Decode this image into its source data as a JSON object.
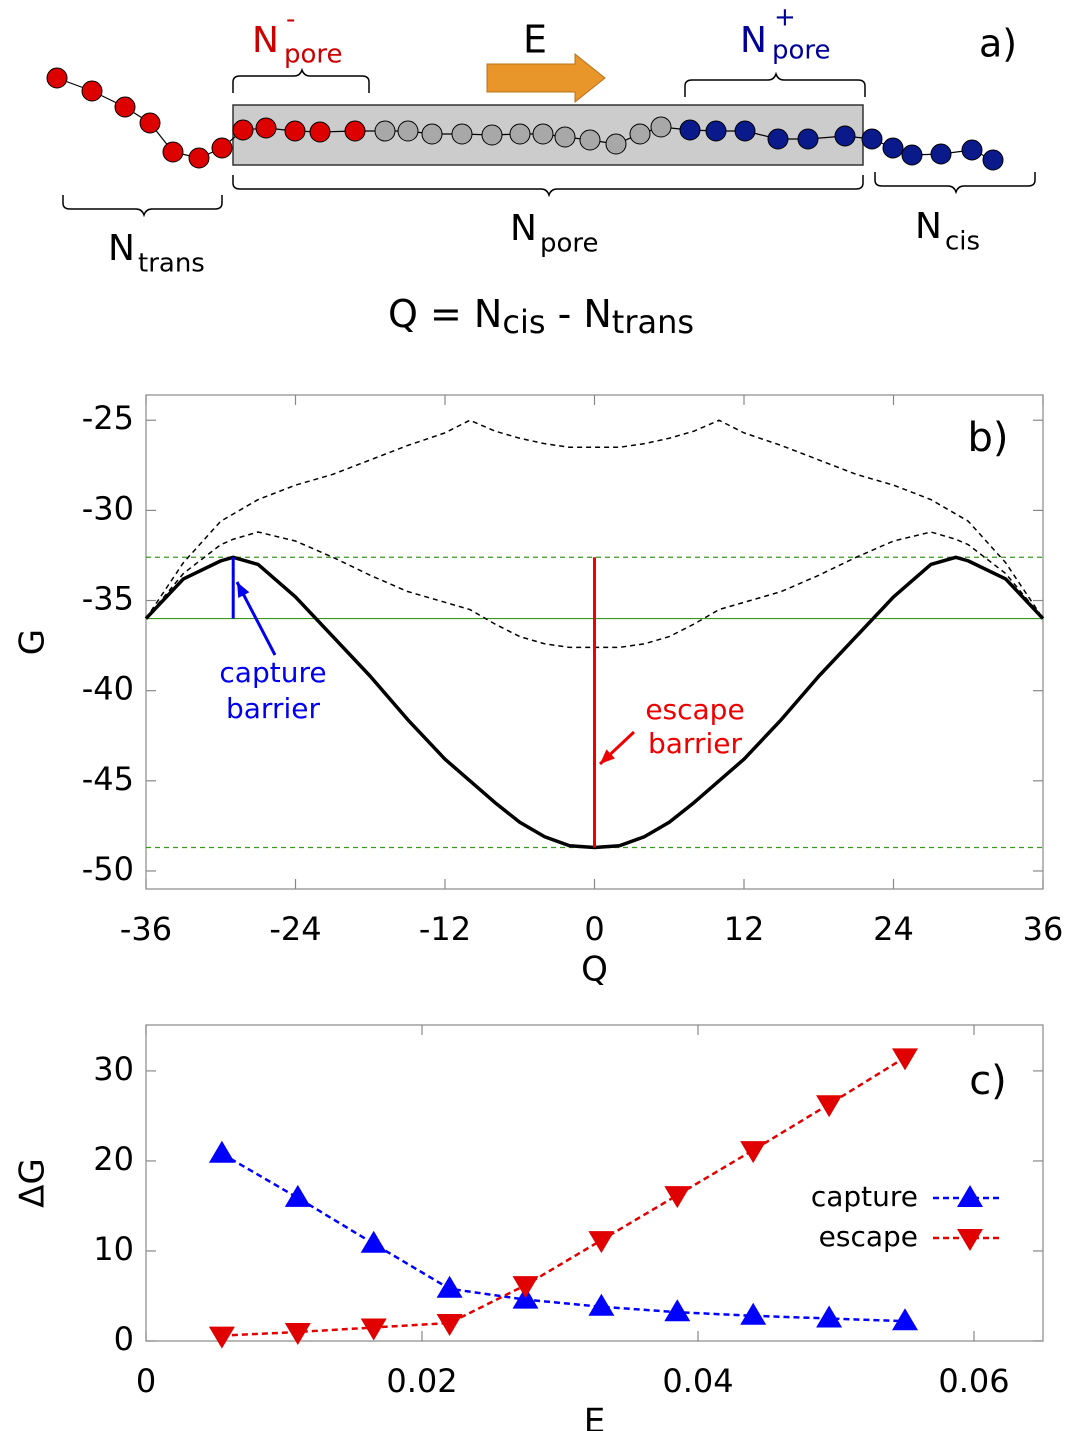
{
  "diagram": {
    "panel_label": "a)",
    "field_label": "E",
    "n_pore_minus": {
      "base": "N",
      "sup": "-",
      "sub": "pore"
    },
    "n_pore_plus": {
      "base": "N",
      "sup": "+",
      "sub": "pore"
    },
    "n_trans": {
      "base": "N",
      "sub": "trans"
    },
    "n_pore": {
      "base": "N",
      "sub": "pore"
    },
    "n_cis": {
      "base": "N",
      "sub": "cis"
    },
    "formula": [
      "Q = N",
      "cis",
      " - N",
      "trans"
    ]
  },
  "chart_data": [
    {
      "type": "line",
      "panel_label": "b)",
      "x_label": "Q",
      "y_label": "G",
      "xlim": [
        -36,
        36
      ],
      "xticks": [
        -36,
        -24,
        -12,
        0,
        12,
        24,
        36
      ],
      "ylim": [
        -51,
        -23.6
      ],
      "yticks": [
        -25,
        -30,
        -35,
        -40,
        -45,
        -50
      ],
      "grid": false,
      "x": [
        -36,
        -33,
        -30,
        -29,
        -27,
        -24,
        -21,
        -18,
        -15,
        -12,
        -10,
        -8,
        -6,
        -4,
        -2,
        0,
        2,
        4,
        6,
        8,
        10,
        12,
        15,
        18,
        21,
        24,
        27,
        29,
        30,
        33,
        36
      ],
      "series": [
        {
          "color": "#000000",
          "line_style": "solid",
          "values": [
            -36,
            -33.8,
            -32.8,
            -32.6,
            -33.0,
            -34.8,
            -37.0,
            -39.2,
            -41.6,
            -43.8,
            -45.0,
            -46.2,
            -47.3,
            -48.1,
            -48.6,
            -48.7,
            -48.6,
            -48.1,
            -47.3,
            -46.2,
            -45.0,
            -43.8,
            -41.6,
            -39.2,
            -37.0,
            -34.8,
            -33.0,
            -32.6,
            -32.8,
            -33.8,
            -36
          ]
        },
        {
          "color": "#000000",
          "line_style": "dashed",
          "values": [
            -36,
            -32.9,
            -30.6,
            -30.2,
            -29.4,
            -28.6,
            -28.0,
            -27.2,
            -26.4,
            -25.7,
            -25.0,
            -25.6,
            -26.0,
            -26.3,
            -26.5,
            -26.5,
            -26.5,
            -26.3,
            -26.0,
            -25.6,
            -25.0,
            -25.7,
            -26.4,
            -27.2,
            -28.0,
            -28.6,
            -29.4,
            -30.2,
            -30.6,
            -32.9,
            -36
          ]
        },
        {
          "color": "#000000",
          "line_style": "dashed",
          "values": [
            -36,
            -33.5,
            -31.9,
            -31.6,
            -31.2,
            -31.7,
            -32.6,
            -33.6,
            -34.5,
            -35.1,
            -35.5,
            -36.3,
            -37.0,
            -37.4,
            -37.6,
            -37.6,
            -37.6,
            -37.4,
            -37.0,
            -36.3,
            -35.5,
            -35.1,
            -34.5,
            -33.6,
            -32.6,
            -31.7,
            -31.2,
            -31.6,
            -31.9,
            -33.5,
            -36
          ]
        }
      ],
      "hlines": [
        {
          "value": -36,
          "color": "#3a9a1e",
          "line_style": "solid"
        },
        {
          "value": -32.6,
          "color": "#3a9a1e",
          "line_style": "dashed"
        },
        {
          "value": -48.7,
          "color": "#3a9a1e",
          "line_style": "dashed"
        }
      ],
      "segments": [
        {
          "x": -29,
          "y": [
            -36,
            -32.6
          ],
          "color": "#0000ee"
        },
        {
          "x": 0,
          "y": [
            -48.7,
            -32.6
          ],
          "color": "#ee0000"
        }
      ],
      "annotations": [
        {
          "lines": [
            "capture",
            "barrier"
          ],
          "color": "#0000ee"
        },
        {
          "lines": [
            "escape",
            "barrier"
          ],
          "color": "#ee0000"
        }
      ]
    },
    {
      "type": "line",
      "panel_label": "c)",
      "x_label": "E",
      "y_label": "ΔG",
      "xlim": [
        0,
        0.065
      ],
      "xticks": [
        0,
        0.02,
        0.04,
        0.06
      ],
      "ylim": [
        0,
        35.1
      ],
      "yticks": [
        0,
        10,
        20,
        30
      ],
      "grid": false,
      "legend": "right",
      "x": [
        0.0055,
        0.011,
        0.0165,
        0.022,
        0.0275,
        0.033,
        0.0385,
        0.044,
        0.0495,
        0.055
      ],
      "series": [
        {
          "name": "capture",
          "color": "#0000ff",
          "line_style": "dashed",
          "marker": "triangle-up",
          "values": [
            20.8,
            15.9,
            10.8,
            5.8,
            4.6,
            3.8,
            3.2,
            2.8,
            2.5,
            2.2
          ]
        },
        {
          "name": "escape",
          "color": "#e00000",
          "line_style": "dashed",
          "marker": "triangle-down",
          "values": [
            0.6,
            1.0,
            1.5,
            2.0,
            6.2,
            11.2,
            16.2,
            21.2,
            26.3,
            31.5
          ]
        }
      ]
    }
  ]
}
